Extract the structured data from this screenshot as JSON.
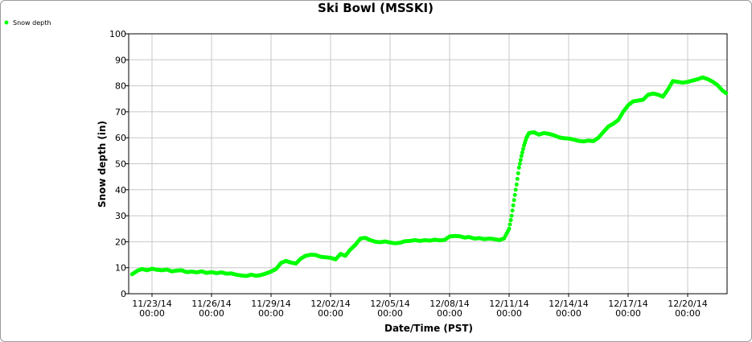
{
  "chart_data": {
    "type": "scatter",
    "title": "Ski Bowl (MSSKI)",
    "xlabel": "Date/Time (PST)",
    "ylabel": "Snow depth (in)",
    "ylim": [
      0,
      100
    ],
    "y_ticks": [
      0,
      10,
      20,
      30,
      40,
      50,
      60,
      70,
      80,
      90,
      100
    ],
    "x_ticks": [
      {
        "date": "11/23/14",
        "time": "00:00"
      },
      {
        "date": "11/26/14",
        "time": "00:00"
      },
      {
        "date": "11/29/14",
        "time": "00:00"
      },
      {
        "date": "12/02/14",
        "time": "00:00"
      },
      {
        "date": "12/05/14",
        "time": "00:00"
      },
      {
        "date": "12/08/14",
        "time": "00:00"
      },
      {
        "date": "12/11/14",
        "time": "00:00"
      },
      {
        "date": "12/14/14",
        "time": "00:00"
      },
      {
        "date": "12/17/14",
        "time": "00:00"
      },
      {
        "date": "12/20/14",
        "time": "00:00"
      }
    ],
    "grid": true,
    "legend_position": "top-left",
    "series": [
      {
        "name": "Snow depth",
        "color": "#00ff00",
        "points": [
          [
            "2014-11-22 00:00",
            7.5
          ],
          [
            "2014-11-22 06:00",
            8.8
          ],
          [
            "2014-11-22 12:00",
            9.5
          ],
          [
            "2014-11-22 18:00",
            9.0
          ],
          [
            "2014-11-23 00:00",
            9.6
          ],
          [
            "2014-11-23 06:00",
            9.2
          ],
          [
            "2014-11-23 12:00",
            9.0
          ],
          [
            "2014-11-23 18:00",
            9.3
          ],
          [
            "2014-11-24 00:00",
            8.6
          ],
          [
            "2014-11-24 06:00",
            8.9
          ],
          [
            "2014-11-24 12:00",
            9.0
          ],
          [
            "2014-11-24 18:00",
            8.3
          ],
          [
            "2014-11-25 00:00",
            8.5
          ],
          [
            "2014-11-25 06:00",
            8.2
          ],
          [
            "2014-11-25 12:00",
            8.6
          ],
          [
            "2014-11-25 18:00",
            8.0
          ],
          [
            "2014-11-26 00:00",
            8.3
          ],
          [
            "2014-11-26 06:00",
            7.9
          ],
          [
            "2014-11-26 12:00",
            8.2
          ],
          [
            "2014-11-26 18:00",
            7.7
          ],
          [
            "2014-11-27 00:00",
            7.8
          ],
          [
            "2014-11-27 06:00",
            7.3
          ],
          [
            "2014-11-27 12:00",
            7.0
          ],
          [
            "2014-11-27 18:00",
            6.8
          ],
          [
            "2014-11-28 00:00",
            7.3
          ],
          [
            "2014-11-28 06:00",
            6.9
          ],
          [
            "2014-11-28 12:00",
            7.2
          ],
          [
            "2014-11-28 18:00",
            7.8
          ],
          [
            "2014-11-29 00:00",
            8.5
          ],
          [
            "2014-11-29 06:00",
            9.5
          ],
          [
            "2014-11-29 12:00",
            11.8
          ],
          [
            "2014-11-29 18:00",
            12.6
          ],
          [
            "2014-11-30 00:00",
            12.0
          ],
          [
            "2014-11-30 06:00",
            11.6
          ],
          [
            "2014-11-30 12:00",
            13.5
          ],
          [
            "2014-11-30 18:00",
            14.6
          ],
          [
            "2014-12-01 00:00",
            15.0
          ],
          [
            "2014-12-01 06:00",
            14.9
          ],
          [
            "2014-12-01 12:00",
            14.2
          ],
          [
            "2014-12-01 18:00",
            14.0
          ],
          [
            "2014-12-02 00:00",
            13.8
          ],
          [
            "2014-12-02 06:00",
            13.2
          ],
          [
            "2014-12-02 12:00",
            15.3
          ],
          [
            "2014-12-02 18:00",
            14.6
          ],
          [
            "2014-12-03 00:00",
            17.0
          ],
          [
            "2014-12-03 06:00",
            18.8
          ],
          [
            "2014-12-03 12:00",
            21.2
          ],
          [
            "2014-12-03 18:00",
            21.5
          ],
          [
            "2014-12-04 00:00",
            20.6
          ],
          [
            "2014-12-04 06:00",
            20.0
          ],
          [
            "2014-12-04 12:00",
            19.8
          ],
          [
            "2014-12-04 18:00",
            20.1
          ],
          [
            "2014-12-05 00:00",
            19.7
          ],
          [
            "2014-12-05 06:00",
            19.4
          ],
          [
            "2014-12-05 12:00",
            19.6
          ],
          [
            "2014-12-05 18:00",
            20.2
          ],
          [
            "2014-12-06 00:00",
            20.3
          ],
          [
            "2014-12-06 06:00",
            20.6
          ],
          [
            "2014-12-06 12:00",
            20.3
          ],
          [
            "2014-12-06 18:00",
            20.6
          ],
          [
            "2014-12-07 00:00",
            20.4
          ],
          [
            "2014-12-07 06:00",
            20.8
          ],
          [
            "2014-12-07 12:00",
            20.5
          ],
          [
            "2014-12-07 18:00",
            20.7
          ],
          [
            "2014-12-08 00:00",
            22.0
          ],
          [
            "2014-12-08 06:00",
            22.2
          ],
          [
            "2014-12-08 12:00",
            22.1
          ],
          [
            "2014-12-08 18:00",
            21.6
          ],
          [
            "2014-12-09 00:00",
            21.8
          ],
          [
            "2014-12-09 06:00",
            21.2
          ],
          [
            "2014-12-09 12:00",
            21.4
          ],
          [
            "2014-12-09 18:00",
            21.0
          ],
          [
            "2014-12-10 00:00",
            21.2
          ],
          [
            "2014-12-10 06:00",
            21.0
          ],
          [
            "2014-12-10 12:00",
            20.6
          ],
          [
            "2014-12-10 18:00",
            21.3
          ],
          [
            "2014-12-11 00:00",
            25.0
          ],
          [
            "2014-12-11 03:00",
            30.0
          ],
          [
            "2014-12-11 06:00",
            36.0
          ],
          [
            "2014-12-11 09:00",
            42.0
          ],
          [
            "2014-12-11 12:00",
            48.5
          ],
          [
            "2014-12-11 15:00",
            53.0
          ],
          [
            "2014-12-11 18:00",
            57.0
          ],
          [
            "2014-12-11 21:00",
            60.0
          ],
          [
            "2014-12-12 00:00",
            61.8
          ],
          [
            "2014-12-12 06:00",
            62.1
          ],
          [
            "2014-12-12 12:00",
            61.2
          ],
          [
            "2014-12-12 18:00",
            61.8
          ],
          [
            "2014-12-13 00:00",
            61.5
          ],
          [
            "2014-12-13 06:00",
            61.0
          ],
          [
            "2014-12-13 12:00",
            60.2
          ],
          [
            "2014-12-13 18:00",
            59.8
          ],
          [
            "2014-12-14 00:00",
            59.7
          ],
          [
            "2014-12-14 06:00",
            59.3
          ],
          [
            "2014-12-14 12:00",
            58.8
          ],
          [
            "2014-12-14 18:00",
            58.6
          ],
          [
            "2014-12-15 00:00",
            58.9
          ],
          [
            "2014-12-15 06:00",
            58.7
          ],
          [
            "2014-12-15 12:00",
            60.0
          ],
          [
            "2014-12-15 18:00",
            62.2
          ],
          [
            "2014-12-16 00:00",
            64.3
          ],
          [
            "2014-12-16 06:00",
            65.4
          ],
          [
            "2014-12-16 12:00",
            66.8
          ],
          [
            "2014-12-16 18:00",
            70.0
          ],
          [
            "2014-12-17 00:00",
            72.5
          ],
          [
            "2014-12-17 06:00",
            74.0
          ],
          [
            "2014-12-17 12:00",
            74.3
          ],
          [
            "2014-12-17 18:00",
            74.6
          ],
          [
            "2014-12-18 00:00",
            76.5
          ],
          [
            "2014-12-18 06:00",
            77.0
          ],
          [
            "2014-12-18 12:00",
            76.6
          ],
          [
            "2014-12-18 18:00",
            75.8
          ],
          [
            "2014-12-19 00:00",
            78.5
          ],
          [
            "2014-12-19 06:00",
            81.8
          ],
          [
            "2014-12-19 12:00",
            81.5
          ],
          [
            "2014-12-19 18:00",
            81.2
          ],
          [
            "2014-12-20 00:00",
            81.5
          ],
          [
            "2014-12-20 06:00",
            82.0
          ],
          [
            "2014-12-20 12:00",
            82.5
          ],
          [
            "2014-12-20 18:00",
            83.2
          ],
          [
            "2014-12-21 00:00",
            82.6
          ],
          [
            "2014-12-21 06:00",
            81.6
          ],
          [
            "2014-12-21 12:00",
            80.3
          ],
          [
            "2014-12-21 18:00",
            78.2
          ],
          [
            "2014-12-22 00:00",
            76.8
          ],
          [
            "2014-12-22 04:00",
            76.0
          ]
        ]
      }
    ]
  }
}
